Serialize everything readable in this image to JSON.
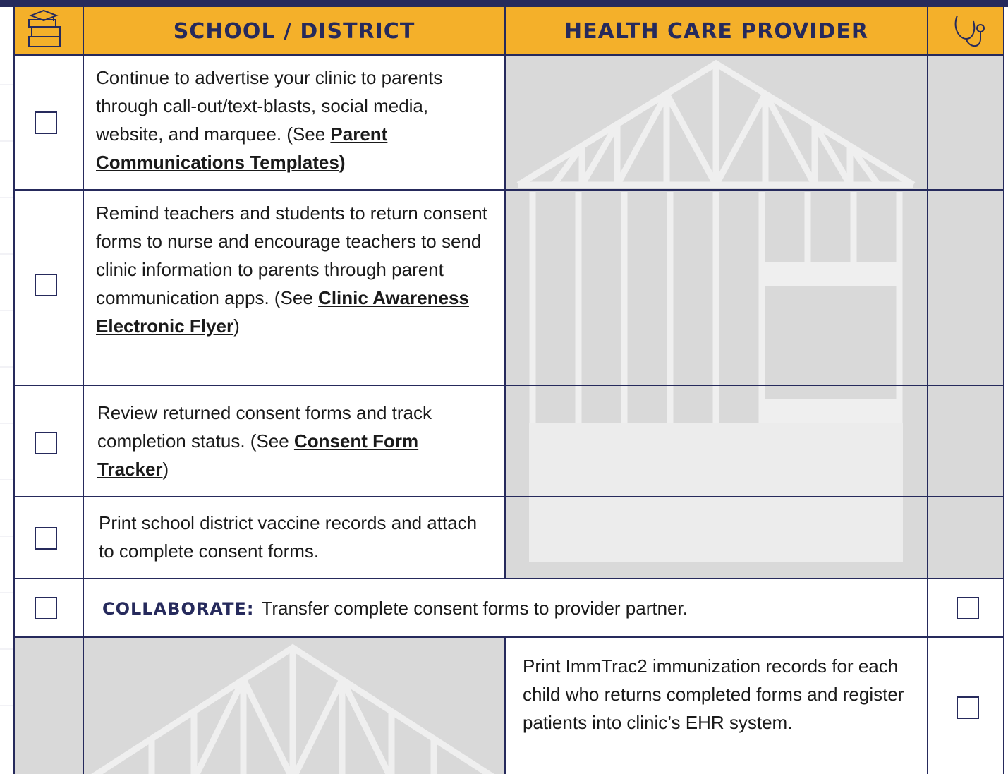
{
  "header": {
    "columns": [
      "SCHOOL / DISTRICT",
      "HEALTH CARE PROVIDER"
    ]
  },
  "school_rows": [
    {
      "text": "Continue to advertise your clinic to parents through call-out/text-blasts, social media, website, and marquee. (See ",
      "link": "Parent Communications Templates",
      "after": ")"
    },
    {
      "text": "Remind teachers and students to return consent forms to nurse and encourage teachers to send clinic information to parents through parent communication apps. (See ",
      "link": "Clinic Awareness Electronic Flyer",
      "after": ")"
    },
    {
      "text": "Review returned consent forms and track completion status. (See ",
      "link": "Consent Form Tracker",
      "after": ")"
    },
    {
      "text": "Print school district vaccine records and attach to complete consent forms."
    }
  ],
  "collaborate": {
    "label": "COLLABORATE:",
    "text": "Transfer complete consent forms to provider partner."
  },
  "provider_rows": [
    {
      "text": "Print ImmTrac2 immunization records for each child who returns completed forms and register patients into clinic’s EHR system."
    }
  ]
}
